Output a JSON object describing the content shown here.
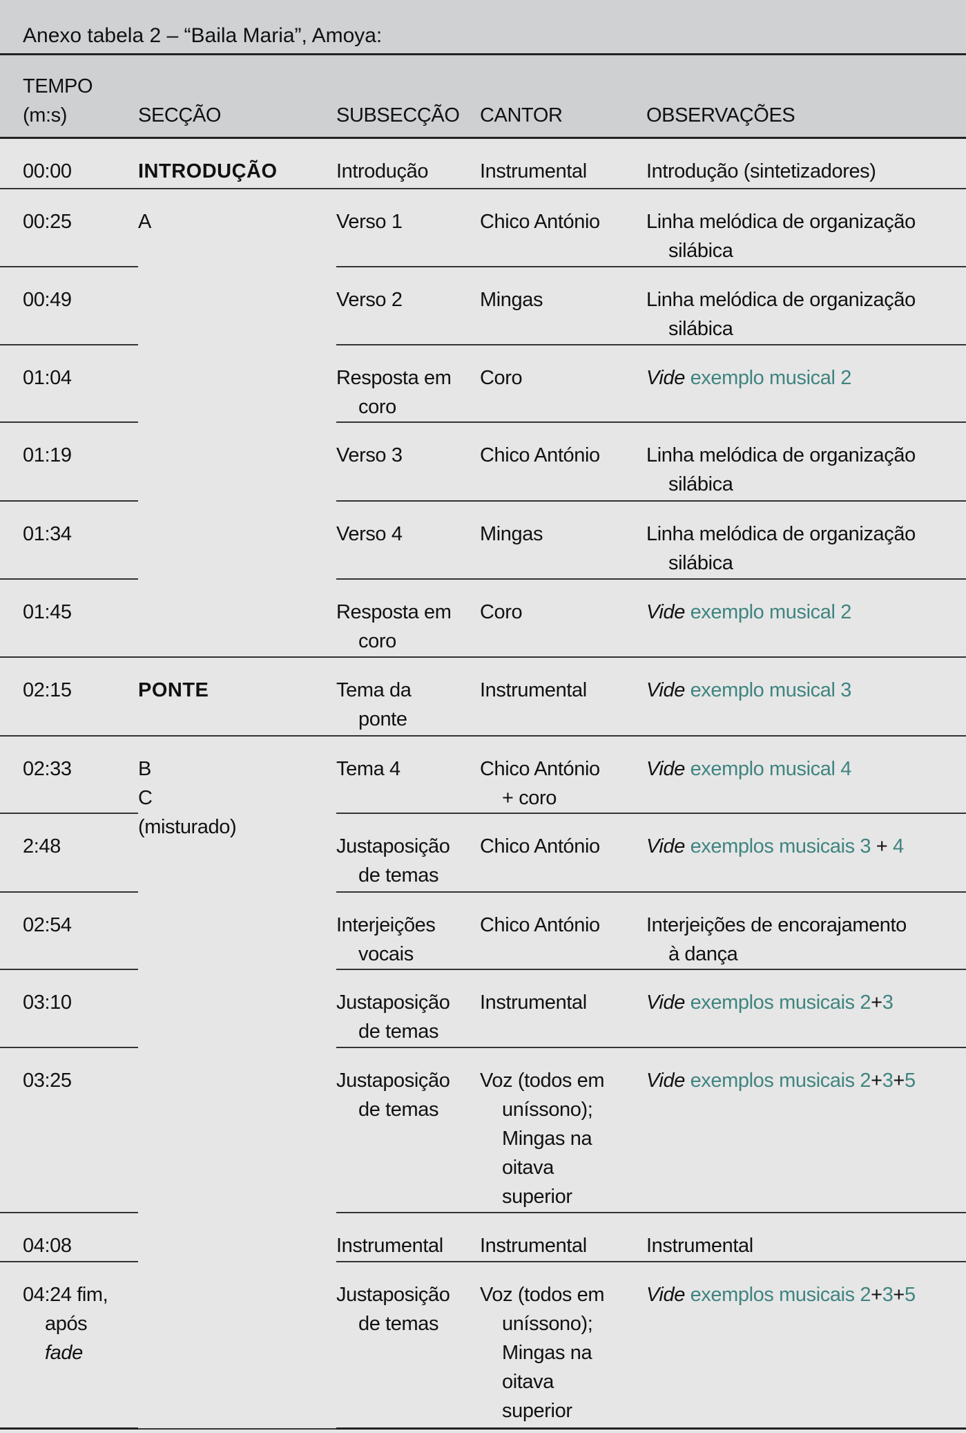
{
  "title": "Anexo tabela 2 – “Baila Maria”, Amoya:",
  "colors": {
    "link": "#3f8480",
    "header_bg": "#cfd0d2",
    "body_bg": "#e6e6e6"
  },
  "headers": [
    [
      "TEMPO",
      "(m:s)"
    ],
    [
      "SECÇÃO"
    ],
    [
      "SUBSECÇÃO"
    ],
    [
      "CANTOR"
    ],
    [
      "OBSERVAÇÕES"
    ]
  ],
  "rows": [
    {
      "h": 73,
      "tempo": [
        "00:00"
      ],
      "seccao": {
        "lines": [
          "INTRODUÇÃO"
        ],
        "span": 1,
        "bold": true
      },
      "sub": [
        "Introdução"
      ],
      "cantor": [
        "Instrumental"
      ],
      "obs": [
        [
          {
            "t": "Introdução (sintetizadores)"
          }
        ]
      ]
    },
    {
      "h": 113,
      "tempo": [
        "00:25"
      ],
      "seccao": {
        "lines": [
          "A"
        ],
        "span": 6,
        "bold": false
      },
      "sub": [
        "Verso 1"
      ],
      "cantor": [
        "Chico António"
      ],
      "obs": [
        [
          {
            "t": "Linha melódica de organização"
          }
        ],
        [
          {
            "t": "silábica"
          }
        ]
      ]
    },
    {
      "h": 113,
      "tempo": [
        "00:49"
      ],
      "sub": [
        "Verso 2"
      ],
      "cantor": [
        "Mingas"
      ],
      "obs": [
        [
          {
            "t": "Linha melódica de organização"
          }
        ],
        [
          {
            "t": "silábica"
          }
        ]
      ]
    },
    {
      "h": 112,
      "tempo": [
        "01:04"
      ],
      "sub": [
        "Resposta em",
        "coro"
      ],
      "cantor": [
        "Coro"
      ],
      "obs": [
        [
          {
            "t": "Vide",
            "s": "it"
          },
          {
            "t": " exemplo musical 2",
            "s": "lk"
          }
        ]
      ]
    },
    {
      "h": 114,
      "tempo": [
        "01:19"
      ],
      "sub": [
        "Verso 3"
      ],
      "cantor": [
        "Chico António"
      ],
      "obs": [
        [
          {
            "t": "Linha melódica de organização"
          }
        ],
        [
          {
            "t": "silábica"
          }
        ]
      ]
    },
    {
      "h": 113,
      "tempo": [
        "01:34"
      ],
      "sub": [
        "Verso 4"
      ],
      "cantor": [
        "Mingas"
      ],
      "obs": [
        [
          {
            "t": "Linha melódica de organização"
          }
        ],
        [
          {
            "t": "silábica"
          }
        ]
      ]
    },
    {
      "h": 113,
      "tempo": [
        "01:45"
      ],
      "sub": [
        "Resposta em",
        "coro"
      ],
      "cantor": [
        "Coro"
      ],
      "obs": [
        [
          {
            "t": "Vide",
            "s": "it"
          },
          {
            "t": " exemplo musical 2",
            "s": "lk"
          }
        ]
      ]
    },
    {
      "h": 114,
      "tempo": [
        "02:15"
      ],
      "seccao": {
        "lines": [
          "PONTE"
        ],
        "span": 1,
        "bold": true
      },
      "sub": [
        "Tema da",
        "ponte"
      ],
      "cantor": [
        "Instrumental"
      ],
      "obs": [
        [
          {
            "t": "Vide",
            "s": "it"
          },
          {
            "t": " exemplo musical 3",
            "s": "lk"
          }
        ]
      ]
    },
    {
      "h": 112,
      "tempo": [
        "02:33"
      ],
      "seccao": {
        "lines": [
          "B",
          "C",
          "(misturado)"
        ],
        "span": 8,
        "bold": false
      },
      "sub": [
        "Tema 4"
      ],
      "cantor": [
        "Chico António",
        "+ coro"
      ],
      "obs": [
        [
          {
            "t": "Vide",
            "s": "it"
          },
          {
            "t": " exemplo musical 4",
            "s": "lk"
          }
        ]
      ]
    },
    {
      "h": 114,
      "tempo": [
        "2:48"
      ],
      "sub": [
        "Justaposição",
        "de temas"
      ],
      "cantor": [
        "Chico António"
      ],
      "obs": [
        [
          {
            "t": "Vide",
            "s": "it"
          },
          {
            "t": " exemplos musicais 3",
            "s": "lk"
          },
          {
            "t": " + "
          },
          {
            "t": "4",
            "s": "lk"
          }
        ]
      ]
    },
    {
      "h": 112,
      "tempo": [
        "02:54"
      ],
      "sub": [
        "Interjeições",
        "vocais"
      ],
      "cantor": [
        "Chico António"
      ],
      "obs": [
        [
          {
            "t": "Interjeições de encorajamento"
          }
        ],
        [
          {
            "t": "à dança"
          }
        ]
      ]
    },
    {
      "h": 113,
      "tempo": [
        "03:10"
      ],
      "sub": [
        "Justaposição",
        "de temas"
      ],
      "cantor": [
        "Instrumental"
      ],
      "obs": [
        [
          {
            "t": "Vide",
            "s": "it"
          },
          {
            "t": " exemplos musicais 2",
            "s": "lk"
          },
          {
            "t": "+"
          },
          {
            "t": "3",
            "s": "lk"
          }
        ]
      ]
    },
    {
      "h": 239,
      "tempo": [
        "03:25"
      ],
      "sub": [
        "Justaposição",
        "de temas"
      ],
      "cantor": [
        "Voz (todos em",
        "unísson0);"
      ],
      "obs": [
        [
          {
            "t": "Vide",
            "s": "it"
          },
          {
            "t": " exemplos musicais 2",
            "s": "lk"
          },
          {
            "t": "+"
          },
          {
            "t": "3",
            "s": "lk"
          },
          {
            "t": "+"
          },
          {
            "t": "5",
            "s": "lk"
          }
        ]
      ]
    },
    {
      "h": 71,
      "tempo": [
        "04:08"
      ],
      "sub": [
        "Instrumental"
      ],
      "cantor": [
        "Instrumental"
      ],
      "obs": [
        [
          {
            "t": "Instrumental"
          }
        ]
      ]
    },
    {
      "h": 242,
      "tempo": [
        "04:24 fim,",
        "após",
        "fade"
      ],
      "sub": [
        "Justaposição",
        "de temas"
      ],
      "cantor": [
        "Voz (todos em",
        "uníssono);",
        "Mingas na",
        "oitava",
        "superior"
      ],
      "obs": [
        [
          {
            "t": "Vide",
            "s": "it"
          },
          {
            "t": " exemplos musicais 2",
            "s": "lk"
          },
          {
            "t": "+"
          },
          {
            "t": "3",
            "s": "lk"
          },
          {
            "t": "+"
          },
          {
            "t": "5",
            "s": "lk"
          }
        ]
      ]
    }
  ]
}
